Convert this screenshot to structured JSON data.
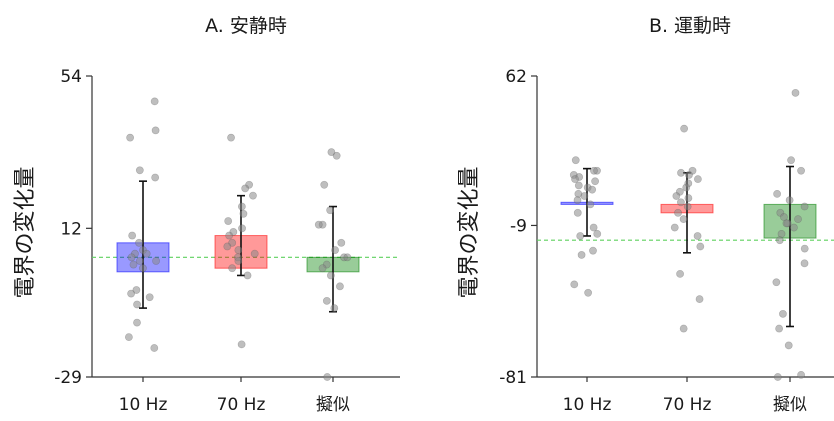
{
  "chart_data": [
    {
      "type": "bar",
      "title": "A. 安静時",
      "ylabel": "電界の変化量",
      "categories": [
        "10 Hz",
        "70 Hz",
        "擬似"
      ],
      "yticks": [
        -29,
        12,
        54
      ],
      "ylim": [
        -29,
        54
      ],
      "reference_line": 4,
      "bars": [
        {
          "low": 0,
          "high": 8,
          "err_low": -10,
          "err_high": 25,
          "color": "#0000ff"
        },
        {
          "low": 1,
          "high": 10,
          "err_low": -1,
          "err_high": 21,
          "color": "#ff0000"
        },
        {
          "low": 0,
          "high": 4,
          "err_low": -11,
          "err_high": 18,
          "color": "#008000"
        }
      ],
      "points": [
        [
          47,
          39,
          37,
          28,
          26,
          10,
          8,
          6,
          5,
          5,
          4,
          3,
          3,
          2,
          1,
          -5,
          -6,
          -7,
          -9,
          -14,
          -18,
          -21
        ],
        [
          37,
          24,
          23,
          21,
          18,
          16,
          14,
          12,
          11,
          10,
          8,
          7,
          6,
          5,
          4,
          3,
          1,
          -1,
          -20
        ],
        [
          33,
          32,
          24,
          17,
          13,
          13,
          8,
          6,
          4,
          4,
          2,
          1,
          -1,
          -4,
          -8,
          -10,
          -29
        ]
      ]
    },
    {
      "type": "bar",
      "title": "B. 運動時",
      "ylabel": "電界の変化量",
      "categories": [
        "10 Hz",
        "70 Hz",
        "擬似"
      ],
      "yticks": [
        -81,
        -9,
        62
      ],
      "ylim": [
        -81,
        62
      ],
      "reference_line": -16,
      "bars": [
        {
          "low": 1,
          "high": 2,
          "err_low": -14,
          "err_high": 18,
          "color": "#0000ff"
        },
        {
          "low": -3,
          "high": 1,
          "err_low": -22,
          "err_high": 16,
          "color": "#ff0000"
        },
        {
          "low": -15,
          "high": 1,
          "err_low": -57,
          "err_high": 19,
          "color": "#008000"
        }
      ],
      "points": [
        [
          22,
          17,
          17,
          15,
          14,
          13,
          12,
          10,
          9,
          8,
          6,
          5,
          3,
          1,
          -3,
          -10,
          -13,
          -14,
          -21,
          -23,
          -37,
          -41
        ],
        [
          37,
          17,
          16,
          15,
          13,
          11,
          9,
          7,
          5,
          4,
          2,
          0,
          -3,
          -6,
          -10,
          -14,
          -19,
          -32,
          -44,
          -58
        ],
        [
          54,
          22,
          17,
          6,
          3,
          0,
          -3,
          -5,
          -6,
          -8,
          -8,
          -10,
          -13,
          -16,
          -20,
          -27,
          -36,
          -51,
          -58,
          -66,
          -80,
          -81
        ]
      ]
    }
  ]
}
